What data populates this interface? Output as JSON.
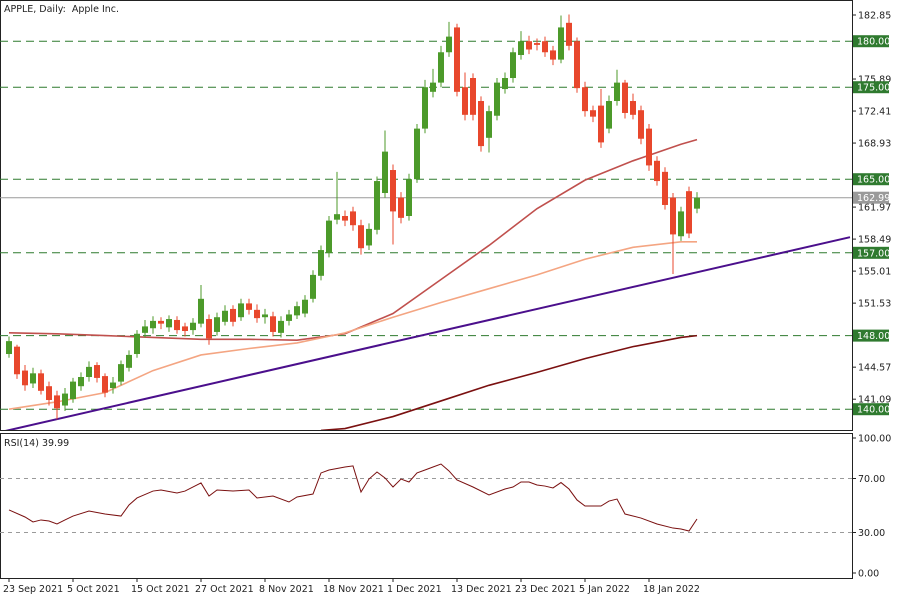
{
  "chart_data": [
    {
      "type": "candlestick",
      "title": "APPLE, Daily:  Apple Inc.",
      "categories": [
        "23 Sep 2021",
        null,
        null,
        null,
        null,
        null,
        null,
        null,
        "5 Oct 2021",
        null,
        null,
        null,
        null,
        null,
        null,
        null,
        "15 Oct 2021",
        null,
        null,
        null,
        null,
        null,
        null,
        null,
        "27 Oct 2021",
        null,
        null,
        null,
        null,
        null,
        null,
        null,
        "8 Nov 2021",
        null,
        null,
        null,
        null,
        null,
        null,
        null,
        "18 Nov 2021",
        null,
        null,
        null,
        null,
        null,
        null,
        null,
        "1 Dec 2021",
        null,
        null,
        null,
        null,
        null,
        null,
        null,
        "13 Dec 2021",
        null,
        null,
        null,
        null,
        null,
        null,
        null,
        "23 Dec 2021",
        null,
        null,
        null,
        null,
        null,
        null,
        null,
        "5 Jan 2022",
        null,
        null,
        null,
        null,
        null,
        null,
        null,
        "18 Jan 2022",
        null,
        null,
        null,
        null,
        null,
        null
      ],
      "open": [
        146.0,
        146.8,
        144.2,
        142.8,
        143.9,
        142.5,
        141.5,
        140.4,
        141.1,
        142.5,
        143.5,
        144.8,
        143.6,
        142.3,
        143.0,
        144.5,
        146.0,
        148.3,
        148.8,
        149.6,
        148.9,
        149.7,
        149.0,
        148.6,
        149.3,
        149.8,
        148.4,
        149.5,
        150.9,
        150.0,
        151.5,
        150.8,
        150.0,
        150.1,
        148.3,
        149.6,
        150.2,
        150.4,
        152.0,
        154.5,
        157.0,
        160.6,
        161.0,
        161.5,
        160.0,
        157.8,
        159.5,
        163.5,
        166.0,
        163.0,
        161.0,
        165.0,
        170.5,
        174.5,
        175.5,
        178.8,
        181.5,
        175.0,
        176.0,
        173.5,
        169.5,
        171.9,
        174.8,
        176.0,
        178.5,
        180.0,
        179.8,
        180.0,
        179.0,
        178.0,
        182.0,
        180.0,
        175.0,
        172.5,
        173.0,
        170.5,
        173.5,
        175.5,
        173.5,
        172.5,
        170.5,
        167.0,
        165.8,
        163.0,
        158.8,
        163.7,
        161.8
      ],
      "high": [
        147.9,
        147.0,
        144.8,
        144.5,
        144.3,
        143.0,
        142.0,
        142.3,
        143.4,
        144.0,
        145.2,
        145.1,
        143.9,
        143.5,
        145.3,
        146.4,
        148.6,
        149.7,
        150.1,
        150.0,
        150.2,
        150.1,
        149.4,
        149.9,
        153.5,
        150.3,
        150.5,
        151.3,
        151.3,
        152.0,
        152.0,
        151.4,
        150.9,
        150.6,
        150.1,
        150.8,
        151.7,
        152.4,
        155.1,
        157.8,
        161.0,
        165.8,
        161.6,
        162.0,
        160.6,
        160.2,
        165.3,
        170.3,
        166.6,
        163.6,
        165.6,
        171.0,
        175.8,
        177.0,
        179.5,
        182.1,
        181.9,
        176.6,
        176.5,
        174.0,
        173.0,
        176.0,
        176.6,
        179.3,
        181.1,
        180.6,
        180.3,
        180.5,
        179.5,
        182.8,
        182.9,
        180.4,
        175.6,
        173.0,
        174.8,
        174.1,
        176.9,
        175.8,
        174.3,
        173.0,
        171.0,
        167.5,
        166.3,
        163.5,
        162.0,
        164.2,
        163.6
      ],
      "low": [
        145.6,
        143.3,
        142.0,
        142.3,
        141.6,
        140.4,
        138.9,
        139.8,
        140.7,
        142.0,
        143.0,
        142.9,
        141.3,
        141.7,
        142.6,
        144.1,
        145.6,
        147.8,
        148.2,
        148.7,
        148.4,
        148.2,
        147.9,
        148.1,
        148.9,
        147.0,
        148.0,
        149.1,
        149.0,
        149.6,
        150.3,
        149.4,
        149.3,
        147.9,
        147.8,
        149.1,
        149.8,
        150.0,
        151.6,
        154.0,
        156.5,
        160.1,
        159.9,
        159.4,
        156.8,
        157.3,
        159.0,
        163.0,
        157.9,
        160.2,
        160.5,
        164.6,
        170.0,
        173.9,
        175.0,
        178.3,
        174.0,
        171.4,
        171.4,
        168.0,
        167.9,
        171.4,
        174.3,
        175.5,
        178.0,
        178.6,
        179.0,
        178.3,
        177.4,
        177.6,
        179.0,
        174.4,
        171.8,
        171.2,
        168.4,
        170.0,
        173.0,
        171.6,
        171.5,
        168.8,
        165.9,
        164.3,
        161.7,
        154.7,
        158.3,
        158.6,
        161.3
      ],
      "close": [
        147.4,
        143.8,
        142.6,
        143.9,
        142.0,
        141.0,
        140.1,
        141.7,
        143.0,
        143.5,
        144.6,
        143.4,
        141.8,
        142.9,
        144.9,
        145.9,
        148.2,
        149.0,
        149.6,
        149.3,
        149.8,
        148.6,
        148.5,
        149.4,
        152.0,
        147.7,
        150.0,
        150.7,
        149.5,
        151.5,
        150.8,
        149.9,
        150.3,
        148.4,
        149.6,
        150.3,
        151.2,
        151.9,
        154.6,
        157.3,
        160.5,
        161.2,
        160.5,
        160.0,
        157.5,
        159.6,
        164.8,
        168.0,
        161.5,
        160.8,
        165.0,
        170.5,
        175.0,
        175.5,
        178.8,
        180.5,
        174.5,
        172.0,
        172.0,
        168.6,
        172.4,
        175.5,
        176.0,
        178.8,
        180.0,
        179.1,
        179.6,
        178.8,
        178.0,
        181.5,
        179.5,
        174.9,
        172.4,
        171.8,
        169.0,
        173.5,
        175.5,
        172.2,
        172.0,
        169.4,
        166.5,
        164.8,
        162.2,
        159.0,
        161.5,
        159.1,
        162.99
      ],
      "up_color": "#4c9a2a",
      "down_color": "#e8472c",
      "xlim": [
        -1.125,
        105.375
      ],
      "ylim": [
        137.74,
        184.48
      ],
      "yticks": [
        182.85,
        175.89,
        172.41,
        168.93,
        161.97,
        158.49,
        155.01,
        151.53,
        144.57,
        141.09
      ],
      "levels": [
        {
          "value": 180,
          "label": "180.00"
        },
        {
          "value": 175,
          "label": "175.00"
        },
        {
          "value": 165,
          "label": "165.00"
        },
        {
          "value": 157,
          "label": "157.00"
        },
        {
          "value": 148,
          "label": "148.00"
        },
        {
          "value": 140,
          "label": "140.00"
        }
      ],
      "level_color": "#2f7a2f",
      "last_price": 162.99,
      "last_price_color": "#9a9a9a",
      "moving_averages": [
        {
          "color": "#c0504d",
          "x": [
            0,
            6,
            12,
            18,
            24,
            30,
            36,
            42,
            48,
            54,
            60,
            66,
            72,
            78,
            84,
            86
          ],
          "values": [
            148.3,
            148.2,
            148.0,
            147.8,
            147.6,
            147.6,
            147.5,
            148.2,
            150.4,
            154.1,
            157.8,
            161.8,
            164.9,
            167.0,
            168.8,
            169.3
          ]
        },
        {
          "color": "#f4a582",
          "x": [
            0,
            6,
            12,
            18,
            24,
            30,
            36,
            42,
            48,
            54,
            60,
            66,
            72,
            78,
            84,
            86
          ],
          "values": [
            140.0,
            140.8,
            141.8,
            144.2,
            145.9,
            146.6,
            147.2,
            148.3,
            150.0,
            151.6,
            153.1,
            154.6,
            156.3,
            157.6,
            158.2,
            158.2
          ]
        },
        {
          "color": "#7a1010",
          "x": [
            39,
            42,
            48,
            54,
            60,
            66,
            72,
            78,
            84,
            86
          ],
          "values": [
            137.7,
            137.9,
            139.2,
            140.9,
            142.6,
            144.0,
            145.5,
            146.8,
            147.8,
            148.0
          ]
        }
      ],
      "trendline": {
        "color": "#4b0f8c",
        "x": [
          -1.125,
          105.125
        ],
        "values": [
          137.5,
          158.7
        ]
      }
    },
    {
      "type": "line",
      "title": "RSI(14)",
      "color": "#7a1010",
      "x": [
        0,
        2,
        3,
        4,
        5,
        6,
        7,
        8,
        10,
        12,
        14,
        15,
        16,
        18,
        19,
        21,
        22,
        24,
        25,
        26,
        28,
        30,
        31,
        33,
        35,
        36,
        38,
        39,
        40,
        42,
        43,
        44,
        45,
        46,
        47,
        48,
        49,
        50,
        51,
        52,
        53,
        54,
        55,
        56,
        58,
        60,
        62,
        63,
        64,
        65,
        66,
        67,
        68,
        69,
        70,
        71,
        72,
        74,
        75,
        76,
        77,
        79,
        81,
        83,
        84,
        85,
        86
      ],
      "values": [
        46.7,
        41.5,
        37.8,
        39.3,
        38.5,
        36.3,
        39.3,
        42.2,
        45.9,
        43.7,
        42.2,
        50.4,
        55.6,
        60.7,
        61.5,
        59.3,
        60.7,
        66.7,
        57.0,
        61.5,
        60.7,
        61.5,
        55.6,
        57.0,
        52.6,
        56.3,
        58.5,
        74.1,
        76.3,
        78.5,
        79.3,
        60.0,
        69.6,
        74.8,
        70.4,
        63.7,
        69.6,
        67.4,
        74.1,
        76.3,
        78.5,
        80.7,
        75.6,
        68.9,
        63.7,
        57.8,
        62.2,
        63.7,
        67.4,
        67.4,
        65.2,
        64.4,
        63.0,
        67.0,
        62.2,
        54.1,
        49.6,
        49.6,
        53.3,
        54.8,
        43.7,
        40.7,
        36.3,
        33.3,
        32.6,
        31.1,
        39.99
      ],
      "ylim": [
        -3.7,
        103.7
      ],
      "yticks": [
        {
          "value": 100,
          "label": "100.00"
        },
        {
          "value": 70,
          "label": "70.00"
        },
        {
          "value": 30,
          "label": "30.00"
        },
        {
          "value": 0,
          "label": "0.00"
        }
      ],
      "levels": [
        70,
        30
      ]
    }
  ]
}
